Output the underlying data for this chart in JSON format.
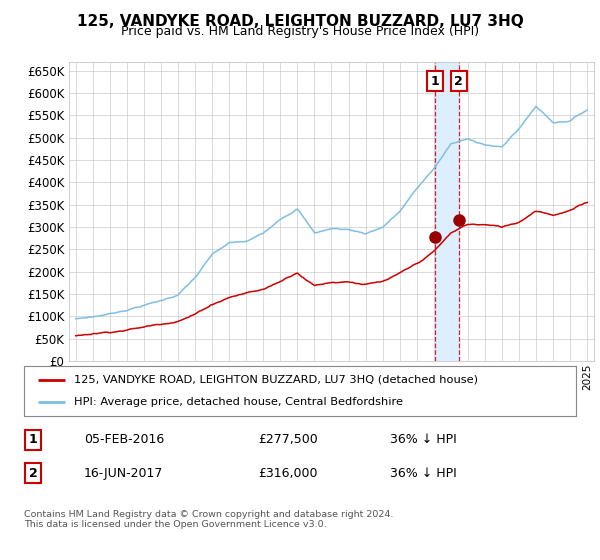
{
  "title": "125, VANDYKE ROAD, LEIGHTON BUZZARD, LU7 3HQ",
  "subtitle": "Price paid vs. HM Land Registry's House Price Index (HPI)",
  "legend_line1": "125, VANDYKE ROAD, LEIGHTON BUZZARD, LU7 3HQ (detached house)",
  "legend_line2": "HPI: Average price, detached house, Central Bedfordshire",
  "transaction1_label": "1",
  "transaction1_date": "05-FEB-2016",
  "transaction1_price": "£277,500",
  "transaction1_hpi": "36% ↓ HPI",
  "transaction2_label": "2",
  "transaction2_date": "16-JUN-2017",
  "transaction2_price": "£316,000",
  "transaction2_hpi": "36% ↓ HPI",
  "footer": "Contains HM Land Registry data © Crown copyright and database right 2024.\nThis data is licensed under the Open Government Licence v3.0.",
  "hpi_color": "#7fbfdf",
  "price_color": "#cc0000",
  "marker_color": "#990000",
  "transaction1_x": 2016.09,
  "transaction2_x": 2017.46,
  "transaction1_y": 277500,
  "transaction2_y": 316000,
  "ylim": [
    0,
    670000
  ],
  "xlim_start": 1994.6,
  "xlim_end": 2025.4,
  "background_color": "#ffffff",
  "grid_color": "#cccccc",
  "shade_color": "#ddeeff",
  "hpi_anchors_years": [
    1995,
    1996,
    1997,
    1998,
    1999,
    2000,
    2001,
    2002,
    2003,
    2004,
    2005,
    2006,
    2007,
    2008,
    2009,
    2010,
    2011,
    2012,
    2013,
    2014,
    2015,
    2016,
    2017,
    2018,
    2019,
    2020,
    2021,
    2022,
    2023,
    2024,
    2025
  ],
  "hpi_anchors_vals": [
    95000,
    100000,
    107000,
    117000,
    128000,
    138000,
    152000,
    190000,
    240000,
    265000,
    267000,
    285000,
    320000,
    345000,
    290000,
    300000,
    298000,
    290000,
    305000,
    340000,
    390000,
    435000,
    490000,
    500000,
    490000,
    483000,
    525000,
    575000,
    540000,
    545000,
    570000
  ],
  "price_anchors_years": [
    1995,
    1996,
    1997,
    1998,
    1999,
    2000,
    2001,
    2002,
    2003,
    2004,
    2005,
    2006,
    2007,
    2008,
    2009,
    2010,
    2011,
    2012,
    2013,
    2014,
    2015,
    2016,
    2017,
    2018,
    2019,
    2020,
    2021,
    2022,
    2023,
    2024,
    2025
  ],
  "price_anchors_vals": [
    57000,
    63000,
    68000,
    74000,
    80000,
    88000,
    97000,
    112000,
    135000,
    152000,
    162000,
    170000,
    188000,
    210000,
    182000,
    190000,
    193000,
    188000,
    192000,
    208000,
    228000,
    255000,
    295000,
    315000,
    314000,
    308000,
    320000,
    348000,
    340000,
    350000,
    367000
  ]
}
